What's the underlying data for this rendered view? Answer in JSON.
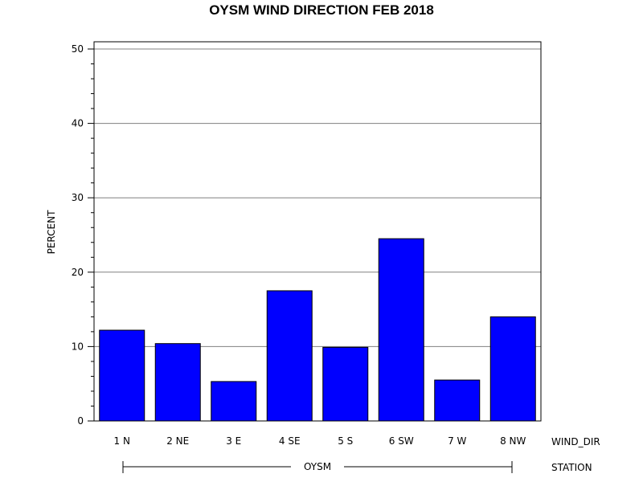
{
  "chart_data": {
    "type": "bar",
    "title": "OYSM WIND DIRECTION FEB 2018",
    "ylabel": "PERCENT",
    "xlabel": "WIND_DIR",
    "group_label": "STATION",
    "group_value": "OYSM",
    "categories": [
      "1 N",
      "2 NE",
      "3 E",
      "4 SE",
      "5 S",
      "6 SW",
      "7 W",
      "8 NW"
    ],
    "values": [
      12.2,
      10.4,
      5.3,
      17.5,
      9.9,
      24.5,
      5.5,
      14.0
    ],
    "ylim": [
      0,
      50
    ],
    "yticks": [
      0,
      10,
      20,
      30,
      40,
      50
    ],
    "grid": true,
    "bar_color": "#0000ff",
    "bar_outline_color": "#000000",
    "grid_color": "#808080"
  }
}
